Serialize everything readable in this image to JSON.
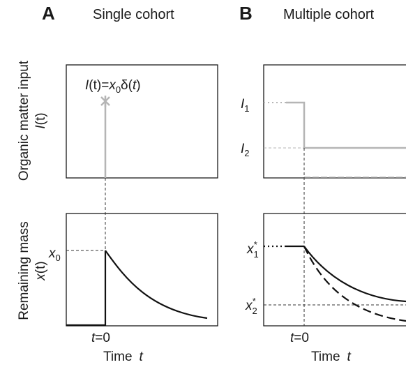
{
  "panel_a": {
    "letter": "A",
    "title": "Single cohort",
    "formula": {
      "lhs": "I",
      "lhs_arg": "(t)=",
      "x": "x",
      "x_sub": "0",
      "rest": "δ(",
      "t": "t",
      "close": ")"
    },
    "x0": {
      "sym": "x",
      "sub": "0"
    },
    "t0": {
      "t": "t",
      "eq": "=0"
    },
    "xlabel": {
      "text": "Time",
      "var": "t"
    }
  },
  "panel_b": {
    "letter": "B",
    "title": "Multiple cohort",
    "i1": {
      "sym": "I",
      "sub": "1"
    },
    "i2": {
      "sym": "I",
      "sub": "2"
    },
    "x1": {
      "sym": "x",
      "sub": "1",
      "sup": "*"
    },
    "x2": {
      "sym": "x",
      "sub": "2",
      "sup": "*"
    },
    "t0": {
      "t": "t",
      "eq": "=0"
    },
    "xlabel": {
      "text": "Time",
      "var": "t"
    }
  },
  "ylabels": {
    "input": {
      "line1": "Organic matter input",
      "sym": "I",
      "arg": "(t)"
    },
    "mass": {
      "line1": "Remaining mass",
      "sym": "x",
      "arg": "(t)"
    }
  },
  "colors": {
    "frame": "#1a1a1a",
    "input_line": "#b5b5b5",
    "mass_line": "#111111"
  }
}
